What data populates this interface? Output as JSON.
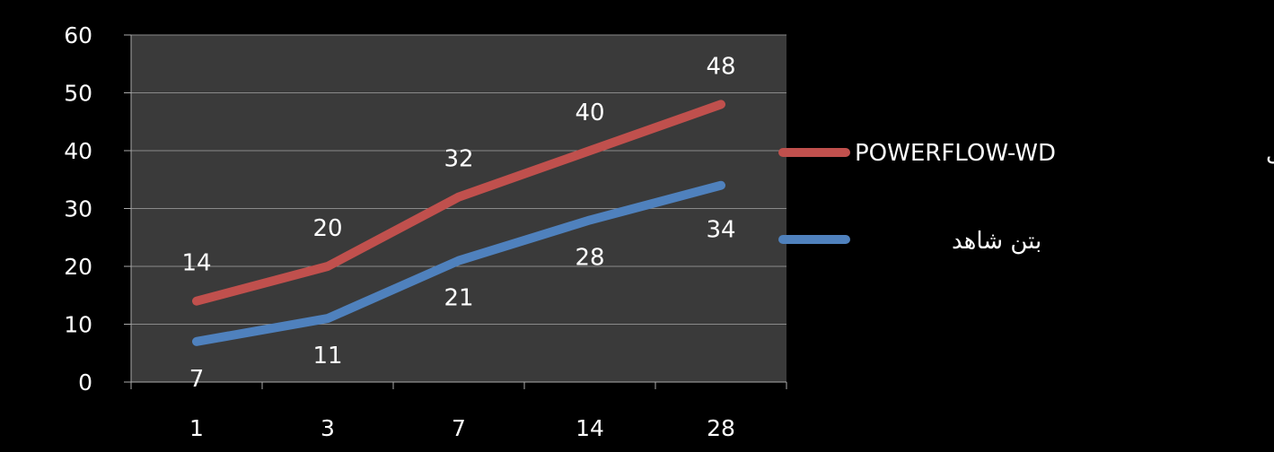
{
  "chart_data": {
    "type": "line",
    "categories": [
      "1",
      "3",
      "7",
      "14",
      "28"
    ],
    "series": [
      {
        "name": "بتن حاوی POWERFLOW-WD",
        "color": "#c0504d",
        "values": [
          14,
          20,
          32,
          40,
          48
        ]
      },
      {
        "name": "بتن شاهد",
        "color": "#4f81bd",
        "values": [
          7,
          11,
          21,
          28,
          34
        ]
      }
    ],
    "ylim": [
      0,
      60
    ],
    "yticks": [
      0,
      10,
      20,
      30,
      40,
      50,
      60
    ],
    "grid": true,
    "legend_position": "right",
    "legend": {
      "entry1_prefix": "بتن حاوی",
      "entry1_code": "POWERFLOW-WD",
      "entry2": "بتن شاهد"
    },
    "colors": {
      "background": "#000000",
      "plot_area": "#3a3a3a",
      "gridline": "#8a8a8a",
      "text": "#ffffff"
    }
  }
}
